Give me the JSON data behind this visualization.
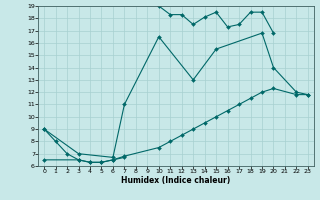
{
  "xlabel": "Humidex (Indice chaleur)",
  "bg_color": "#c8e8e8",
  "grid_color": "#a8d0d0",
  "line_color": "#006868",
  "xlim": [
    -0.5,
    23.5
  ],
  "ylim": [
    6,
    19
  ],
  "xticks": [
    0,
    1,
    2,
    3,
    4,
    5,
    6,
    7,
    8,
    9,
    10,
    11,
    12,
    13,
    14,
    15,
    16,
    17,
    18,
    19,
    20,
    21,
    22,
    23
  ],
  "yticks": [
    6,
    7,
    8,
    9,
    10,
    11,
    12,
    13,
    14,
    15,
    16,
    17,
    18,
    19
  ],
  "seg1a_x": [
    0,
    1,
    2,
    3,
    4,
    5,
    6,
    7
  ],
  "seg1a_y": [
    9.0,
    8.0,
    7.0,
    6.5,
    6.3,
    6.3,
    6.5,
    6.7
  ],
  "seg1b_x": [
    10,
    11,
    12,
    13,
    14,
    15,
    16,
    17,
    18,
    19,
    20
  ],
  "seg1b_y": [
    19.0,
    18.3,
    18.3,
    17.5,
    18.1,
    18.5,
    17.3,
    17.5,
    18.5,
    18.5,
    16.8
  ],
  "seg2_x": [
    0,
    3,
    6,
    7,
    10,
    13,
    15,
    19,
    20,
    22,
    23
  ],
  "seg2_y": [
    9.0,
    7.0,
    6.7,
    11.0,
    16.5,
    13.0,
    15.5,
    16.8,
    14.0,
    12.0,
    11.8
  ],
  "seg3_x": [
    0,
    3,
    4,
    5,
    6,
    7,
    10,
    11,
    12,
    13,
    14,
    15,
    16,
    17,
    18,
    19,
    20,
    22,
    23
  ],
  "seg3_y": [
    6.5,
    6.5,
    6.3,
    6.3,
    6.5,
    6.8,
    7.5,
    8.0,
    8.5,
    9.0,
    9.5,
    10.0,
    10.5,
    11.0,
    11.5,
    12.0,
    12.3,
    11.8,
    11.8
  ]
}
